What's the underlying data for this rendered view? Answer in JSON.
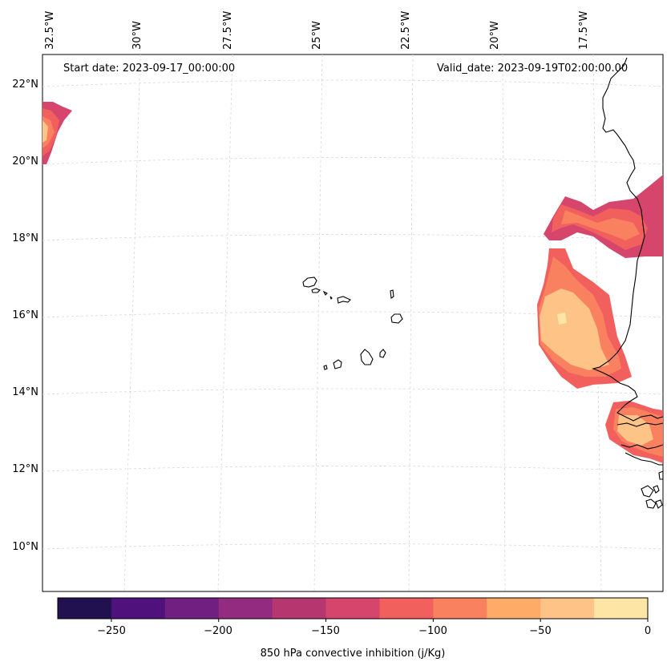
{
  "map": {
    "start_label": "Start date: 2023-09-17_00:00:00",
    "valid_label": "Valid_date: 2023-09-19T02:00:00.00",
    "lon_ticks": [
      "32.5°W",
      "30°W",
      "27.5°W",
      "25°W",
      "22.5°W",
      "20°W",
      "17.5°W"
    ],
    "lat_ticks": [
      "22°N",
      "20°N",
      "18°N",
      "16°N",
      "14°N",
      "12°N",
      "10°N"
    ],
    "gridlines": true,
    "colors": {
      "levels": [
        "#07061c",
        "#221150",
        "#4f117b",
        "#711f81",
        "#932b80",
        "#b6376f",
        "#d6456c",
        "#f1605d",
        "#fa815f",
        "#feab67",
        "#fec387",
        "#fde5a6"
      ]
    }
  },
  "colorbar": {
    "title": "850 hPa convective inhibition (j/Kg)",
    "ticks": [
      "−250",
      "−200",
      "−150",
      "−100",
      "−50",
      "0"
    ],
    "min": -275,
    "max": 0,
    "step": 25
  }
}
